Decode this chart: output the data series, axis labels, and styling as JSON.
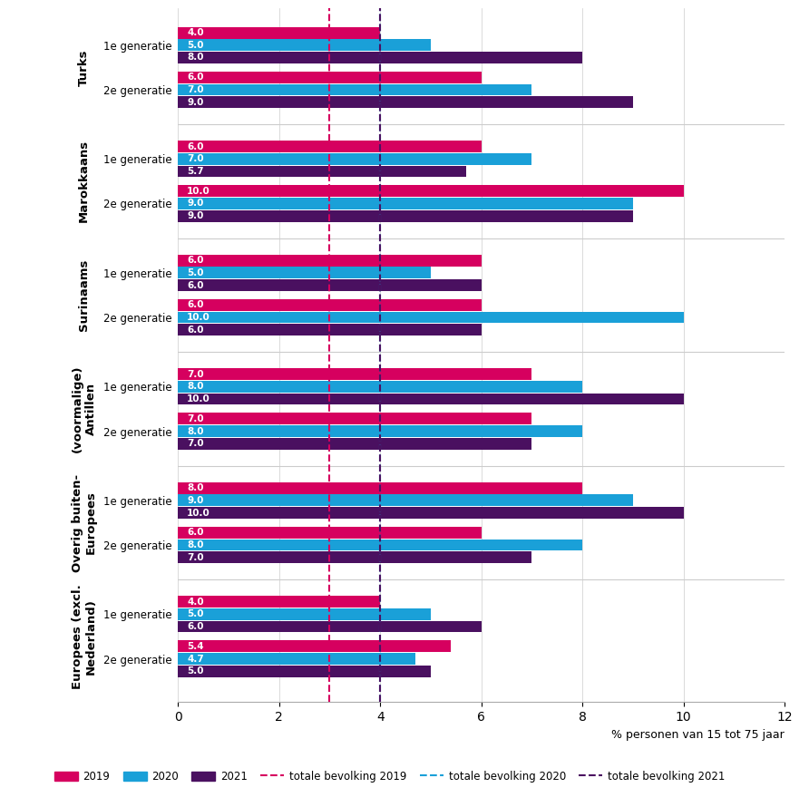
{
  "groups": [
    {
      "label": "Turks",
      "subgroups": [
        {
          "label": "1e generatie",
          "values": [
            4.0,
            5.0,
            8.0
          ]
        },
        {
          "label": "2e generatie",
          "values": [
            6.0,
            7.0,
            9.0
          ]
        }
      ]
    },
    {
      "label": "Marokkaans",
      "subgroups": [
        {
          "label": "1e generatie",
          "values": [
            6.0,
            7.0,
            5.7
          ]
        },
        {
          "label": "2e generatie",
          "values": [
            10.0,
            9.0,
            9.0
          ]
        }
      ]
    },
    {
      "label": "Surinaams",
      "subgroups": [
        {
          "label": "1e generatie",
          "values": [
            6.0,
            5.0,
            6.0
          ]
        },
        {
          "label": "2e generatie",
          "values": [
            6.0,
            10.0,
            6.0
          ]
        }
      ]
    },
    {
      "label": "(voormalige)\nAntillen",
      "subgroups": [
        {
          "label": "1e generatie",
          "values": [
            7.0,
            8.0,
            10.0
          ]
        },
        {
          "label": "2e generatie",
          "values": [
            7.0,
            8.0,
            7.0
          ]
        }
      ]
    },
    {
      "label": "Overig buiten-\nEuropees",
      "subgroups": [
        {
          "label": "1e generatie",
          "values": [
            8.0,
            9.0,
            10.0
          ]
        },
        {
          "label": "2e generatie",
          "values": [
            6.0,
            8.0,
            7.0
          ]
        }
      ]
    },
    {
      "label": "Europees (excl.\nNederland)",
      "subgroups": [
        {
          "label": "1e generatie",
          "values": [
            4.0,
            5.0,
            6.0
          ]
        },
        {
          "label": "2e generatie",
          "values": [
            5.4,
            4.7,
            5.0
          ]
        }
      ]
    }
  ],
  "colors": [
    "#d6005f",
    "#1aa0d8",
    "#4a1060"
  ],
  "totale_bevolking": [
    3.0,
    4.0,
    4.0
  ],
  "totale_bevolking_colors": [
    "#d6005f",
    "#1aa0d8",
    "#4a1060"
  ],
  "year_labels": [
    "2019",
    "2020",
    "2021"
  ],
  "xlabel": "% personen van 15 tot 75 jaar",
  "xlim": [
    0,
    12
  ],
  "xticks": [
    0,
    2,
    4,
    6,
    8,
    10,
    12
  ],
  "text_color": "#ffffff",
  "text_fontsize": 7.5,
  "label_fontsize": 8.5,
  "group_label_fontsize": 9.5
}
